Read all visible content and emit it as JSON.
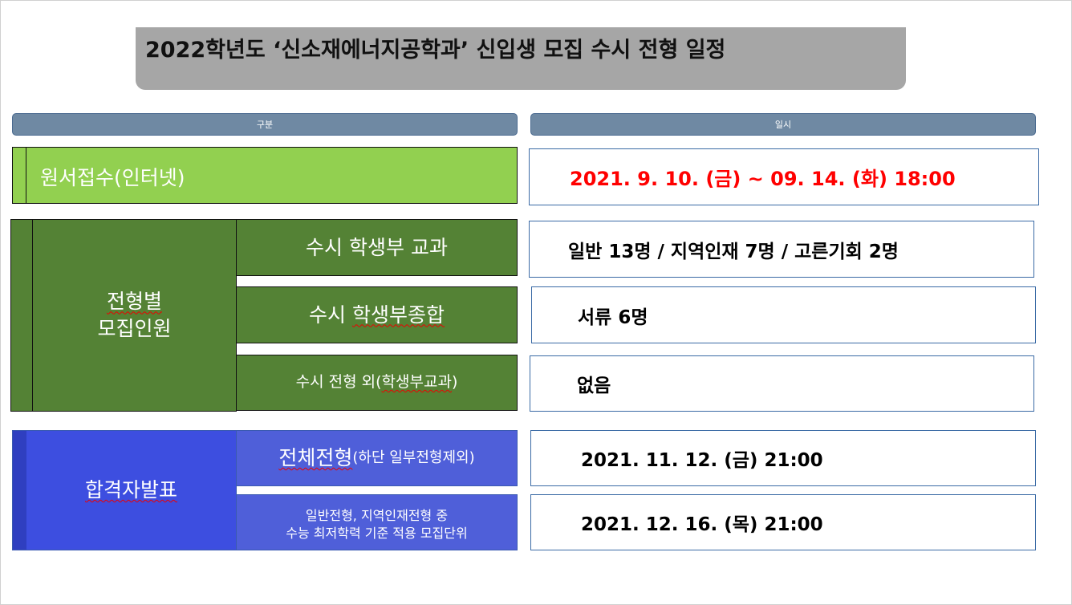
{
  "title": "2022학년도 ‘신소재에너지공학과’ 신입생 모집 수시 전형 일정",
  "headers": {
    "category": "구분",
    "schedule": "일시"
  },
  "application": {
    "label": "원서접수(인터넷)",
    "value": "2021. 9. 10. (금) ~ 09. 14. (화) 18:00",
    "value_color": "#ff0000"
  },
  "quota": {
    "label_line1": "전형별",
    "label_line2": "모집인원",
    "rows": [
      {
        "label": "수시 학생부 교과",
        "value": "일반 13명 / 지역인재 7명 / 고른기회 2명"
      },
      {
        "label_a": "수시 ",
        "label_b": "학생부종합",
        "value": "서류 6명"
      },
      {
        "label_a": "수시 전형 외(",
        "label_b": "학생부교과",
        "label_c": ")",
        "value": "없음"
      }
    ]
  },
  "announce": {
    "label": "합격자발표",
    "rows": [
      {
        "label_main": "전체전형",
        "label_sub": "(하단 일부전형제외)",
        "value": "2021. 11. 12. (금) 21:00"
      },
      {
        "label_line1": "일반전형, 지역인재전형 중",
        "label_line2": "수능 최저학력 기준 적용 모집단위",
        "value": "2021. 12. 16. (목) 21:00"
      }
    ]
  },
  "colors": {
    "light_green": "#92d050",
    "dark_green": "#548235",
    "blue": "#3d4ee0",
    "header": "#6f89a3"
  }
}
